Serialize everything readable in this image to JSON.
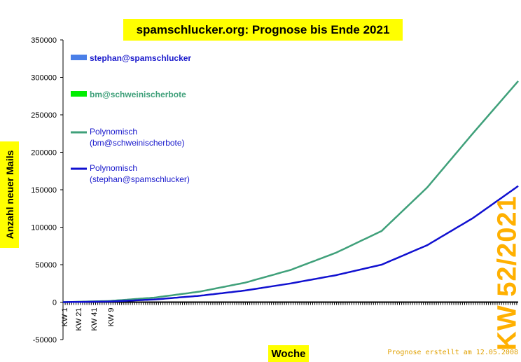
{
  "chart_data": {
    "type": "line",
    "title": "spamschlucker.org: Prognose bis Ende 2021",
    "xlabel": "Woche",
    "ylabel": "Anzahl neuer Mails",
    "ylim": [
      -50000,
      350000
    ],
    "yticks": [
      -50000,
      0,
      50000,
      100000,
      150000,
      200000,
      250000,
      300000,
      350000
    ],
    "xtick_labels": [
      "KW 1",
      "KW 21",
      "KW 41",
      "KW 9"
    ],
    "grid": false,
    "legend_placement": "top-left",
    "legend": [
      {
        "label": "stephan@spamschlucker",
        "kind": "bar",
        "color": "#4a7fe8",
        "text_color": "#1a1acc"
      },
      {
        "label": "bm@schweinischerbote",
        "kind": "bar",
        "color": "#00ee00",
        "text_color": "#3fa07a"
      },
      {
        "label_lines": [
          "Polynomisch",
          "(bm@schweinischerbote)"
        ],
        "kind": "line",
        "color": "#3fa07a",
        "text_color": "#1a1acc"
      },
      {
        "label_lines": [
          "Polynomisch",
          "(stephan@spamschlucker)"
        ],
        "kind": "line",
        "color": "#1010d0",
        "text_color": "#1a1acc"
      }
    ],
    "series": [
      {
        "name": "Polynomisch (bm@schweinischerbote)",
        "color": "#3fa07a",
        "x": [
          0,
          0.1,
          0.2,
          0.3,
          0.4,
          0.5,
          0.6,
          0.7,
          0.8,
          0.9,
          1.0
        ],
        "values": [
          0,
          1500,
          6000,
          14000,
          26000,
          43000,
          66000,
          95000,
          153000,
          225000,
          295000
        ]
      },
      {
        "name": "Polynomisch (stephan@spamschlucker)",
        "color": "#1010d0",
        "x": [
          0,
          0.1,
          0.2,
          0.3,
          0.4,
          0.5,
          0.6,
          0.7,
          0.8,
          0.9,
          1.0
        ],
        "values": [
          0,
          800,
          3500,
          8500,
          15500,
          25000,
          36000,
          50000,
          76000,
          112000,
          155000
        ]
      }
    ]
  },
  "annotations": {
    "kw": "KW 52/2021",
    "prognose": "Prognose erstellt am 12.05.2008"
  }
}
